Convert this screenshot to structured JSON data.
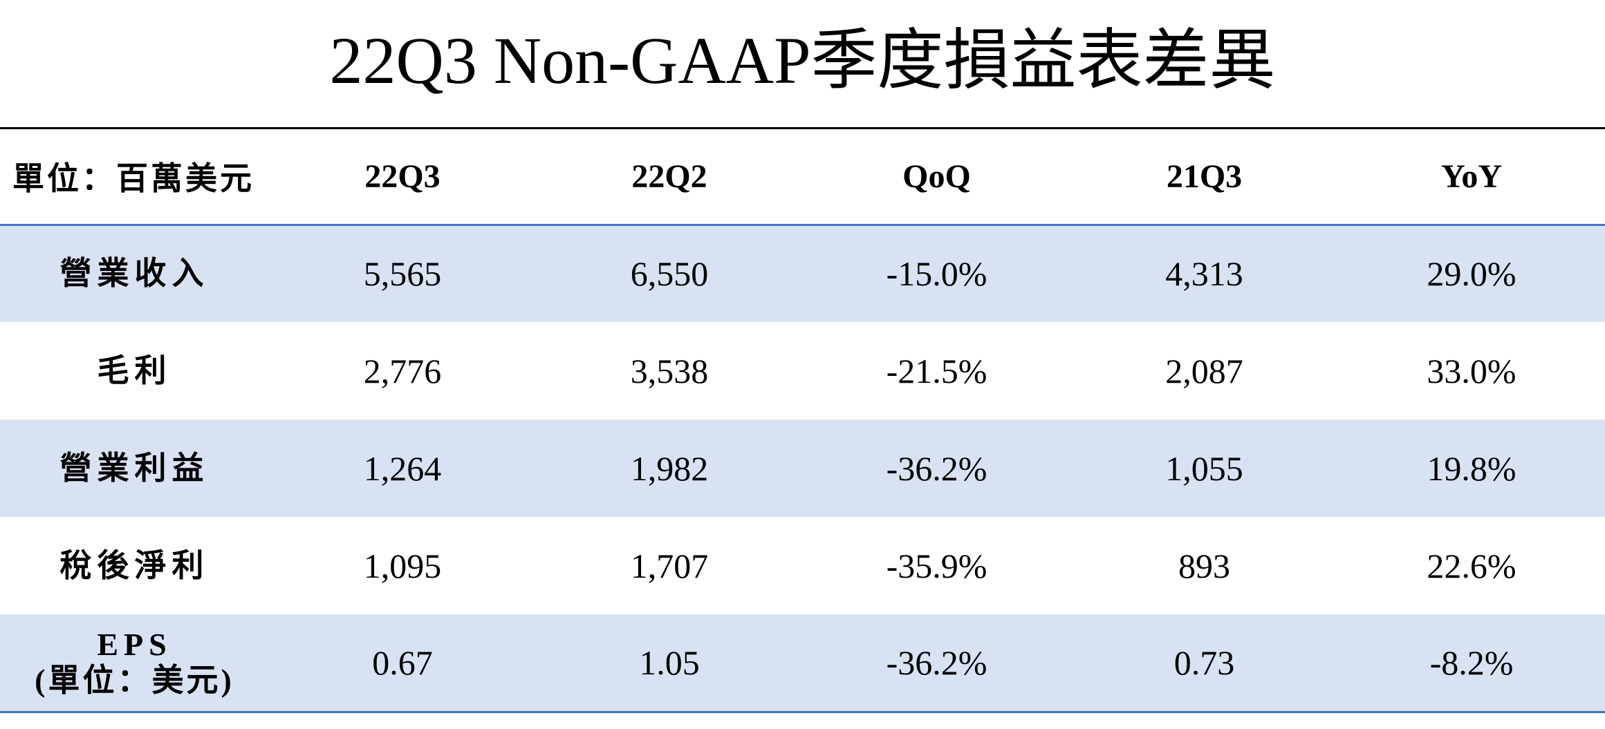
{
  "title": "22Q3 Non-GAAP季度損益表差異",
  "table": {
    "headers": [
      "單位：百萬美元",
      "22Q3",
      "22Q2",
      "QoQ",
      "21Q3",
      "YoY"
    ],
    "rows": [
      {
        "label": "營業收入",
        "label_sub": "",
        "values": [
          "5,565",
          "6,550",
          "-15.0%",
          "4,313",
          "29.0%"
        ]
      },
      {
        "label": "毛利",
        "label_sub": "",
        "values": [
          "2,776",
          "3,538",
          "-21.5%",
          "2,087",
          "33.0%"
        ]
      },
      {
        "label": "營業利益",
        "label_sub": "",
        "values": [
          "1,264",
          "1,982",
          "-36.2%",
          "1,055",
          "19.8%"
        ]
      },
      {
        "label": "稅後淨利",
        "label_sub": "",
        "values": [
          "1,095",
          "1,707",
          "-35.9%",
          "893",
          "22.6%"
        ]
      },
      {
        "label": "EPS",
        "label_sub": "(單位：美元)",
        "values": [
          "0.67",
          "1.05",
          "-36.2%",
          "0.73",
          "-8.2%"
        ]
      }
    ]
  },
  "colors": {
    "row_shade": "#d9e2f3",
    "rule_blue": "#4472c4",
    "rule_black": "#000000"
  }
}
